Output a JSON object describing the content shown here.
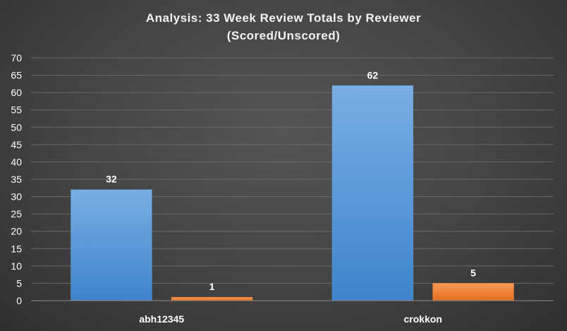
{
  "chart_data": {
    "type": "bar",
    "title": "Analysis:  33 Week Review Totals  by Reviewer",
    "subtitle": "(Scored/Unscored)",
    "categories": [
      "abh12345",
      "crokkon"
    ],
    "series": [
      {
        "values": [
          32,
          62
        ],
        "color": "#5b9bd5"
      },
      {
        "values": [
          1,
          5
        ],
        "color": "#ed7d31"
      }
    ],
    "ylim": [
      0,
      70
    ],
    "yticks": [
      0,
      5,
      10,
      15,
      20,
      25,
      30,
      35,
      40,
      45,
      50,
      55,
      60,
      65,
      70
    ],
    "grid": true,
    "legend": "none",
    "data_labels": true
  }
}
